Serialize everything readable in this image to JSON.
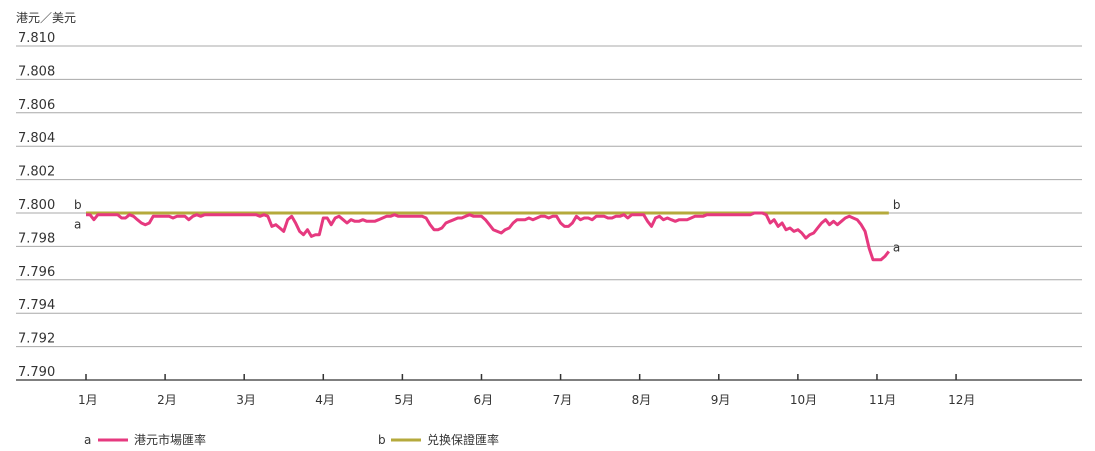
{
  "chart_data": {
    "type": "line",
    "y_unit_label": "港元／美元",
    "ylim": [
      7.79,
      7.81
    ],
    "y_ticks": [
      "7.810",
      "7.808",
      "7.806",
      "7.804",
      "7.802",
      "7.800",
      "7.798",
      "7.796",
      "7.794",
      "7.792",
      "7.790"
    ],
    "x_categories": [
      "1月",
      "2月",
      "3月",
      "4月",
      "5月",
      "6月",
      "7月",
      "8月",
      "9月",
      "10月",
      "11月",
      "12月"
    ],
    "xlim": [
      1,
      12.96
    ],
    "grid": true,
    "series": [
      {
        "key": "a",
        "name": "港元市場匯率",
        "color": "#e6397f",
        "points": [
          [
            1.0,
            7.7999
          ],
          [
            1.05,
            7.7999
          ],
          [
            1.1,
            7.7996
          ],
          [
            1.15,
            7.7999
          ],
          [
            1.2,
            7.7999
          ],
          [
            1.25,
            7.7999
          ],
          [
            1.3,
            7.7999
          ],
          [
            1.35,
            7.7999
          ],
          [
            1.4,
            7.7999
          ],
          [
            1.45,
            7.7997
          ],
          [
            1.5,
            7.7997
          ],
          [
            1.55,
            7.7999
          ],
          [
            1.6,
            7.7998
          ],
          [
            1.65,
            7.7996
          ],
          [
            1.7,
            7.7994
          ],
          [
            1.75,
            7.7993
          ],
          [
            1.8,
            7.7994
          ],
          [
            1.85,
            7.7998
          ],
          [
            1.9,
            7.7998
          ],
          [
            1.95,
            7.7998
          ],
          [
            2.0,
            7.7998
          ],
          [
            2.05,
            7.7998
          ],
          [
            2.1,
            7.7997
          ],
          [
            2.15,
            7.7998
          ],
          [
            2.2,
            7.7998
          ],
          [
            2.25,
            7.7998
          ],
          [
            2.3,
            7.7996
          ],
          [
            2.35,
            7.7998
          ],
          [
            2.4,
            7.7999
          ],
          [
            2.45,
            7.7998
          ],
          [
            2.5,
            7.7999
          ],
          [
            2.55,
            7.7999
          ],
          [
            2.6,
            7.7999
          ],
          [
            2.65,
            7.7999
          ],
          [
            2.7,
            7.7999
          ],
          [
            2.75,
            7.7999
          ],
          [
            2.8,
            7.7999
          ],
          [
            2.85,
            7.7999
          ],
          [
            2.9,
            7.7999
          ],
          [
            2.95,
            7.7999
          ],
          [
            3.0,
            7.7999
          ],
          [
            3.05,
            7.7999
          ],
          [
            3.1,
            7.7999
          ],
          [
            3.15,
            7.7999
          ],
          [
            3.2,
            7.7998
          ],
          [
            3.25,
            7.7999
          ],
          [
            3.3,
            7.7998
          ],
          [
            3.35,
            7.7992
          ],
          [
            3.4,
            7.7993
          ],
          [
            3.45,
            7.7991
          ],
          [
            3.5,
            7.7989
          ],
          [
            3.55,
            7.7996
          ],
          [
            3.6,
            7.7998
          ],
          [
            3.65,
            7.7994
          ],
          [
            3.7,
            7.7989
          ],
          [
            3.75,
            7.7987
          ],
          [
            3.8,
            7.799
          ],
          [
            3.85,
            7.7986
          ],
          [
            3.9,
            7.7987
          ],
          [
            3.95,
            7.7987
          ],
          [
            4.0,
            7.7997
          ],
          [
            4.05,
            7.7997
          ],
          [
            4.1,
            7.7993
          ],
          [
            4.15,
            7.7997
          ],
          [
            4.2,
            7.7998
          ],
          [
            4.25,
            7.7996
          ],
          [
            4.3,
            7.7994
          ],
          [
            4.35,
            7.7996
          ],
          [
            4.4,
            7.7995
          ],
          [
            4.45,
            7.7995
          ],
          [
            4.5,
            7.7996
          ],
          [
            4.55,
            7.7995
          ],
          [
            4.6,
            7.7995
          ],
          [
            4.65,
            7.7995
          ],
          [
            4.7,
            7.7996
          ],
          [
            4.75,
            7.7997
          ],
          [
            4.8,
            7.7998
          ],
          [
            4.85,
            7.7998
          ],
          [
            4.9,
            7.7999
          ],
          [
            4.95,
            7.7998
          ],
          [
            5.0,
            7.7998
          ],
          [
            5.05,
            7.7998
          ],
          [
            5.1,
            7.7998
          ],
          [
            5.15,
            7.7998
          ],
          [
            5.2,
            7.7998
          ],
          [
            5.25,
            7.7998
          ],
          [
            5.3,
            7.7997
          ],
          [
            5.35,
            7.7993
          ],
          [
            5.4,
            7.799
          ],
          [
            5.45,
            7.799
          ],
          [
            5.5,
            7.7991
          ],
          [
            5.55,
            7.7994
          ],
          [
            5.6,
            7.7995
          ],
          [
            5.65,
            7.7996
          ],
          [
            5.7,
            7.7997
          ],
          [
            5.75,
            7.7997
          ],
          [
            5.8,
            7.7998
          ],
          [
            5.85,
            7.7999
          ],
          [
            5.9,
            7.7998
          ],
          [
            5.95,
            7.7998
          ],
          [
            6.0,
            7.7998
          ],
          [
            6.05,
            7.7996
          ],
          [
            6.1,
            7.7993
          ],
          [
            6.15,
            7.799
          ],
          [
            6.2,
            7.7989
          ],
          [
            6.25,
            7.7988
          ],
          [
            6.3,
            7.799
          ],
          [
            6.35,
            7.7991
          ],
          [
            6.4,
            7.7994
          ],
          [
            6.45,
            7.7996
          ],
          [
            6.5,
            7.7996
          ],
          [
            6.55,
            7.7996
          ],
          [
            6.6,
            7.7997
          ],
          [
            6.65,
            7.7996
          ],
          [
            6.7,
            7.7997
          ],
          [
            6.75,
            7.7998
          ],
          [
            6.8,
            7.7998
          ],
          [
            6.85,
            7.7997
          ],
          [
            6.9,
            7.7998
          ],
          [
            6.95,
            7.7998
          ],
          [
            7.0,
            7.7994
          ],
          [
            7.05,
            7.7992
          ],
          [
            7.1,
            7.7992
          ],
          [
            7.15,
            7.7994
          ],
          [
            7.2,
            7.7998
          ],
          [
            7.25,
            7.7996
          ],
          [
            7.3,
            7.7997
          ],
          [
            7.35,
            7.7997
          ],
          [
            7.4,
            7.7996
          ],
          [
            7.45,
            7.7998
          ],
          [
            7.5,
            7.7998
          ],
          [
            7.55,
            7.7998
          ],
          [
            7.6,
            7.7997
          ],
          [
            7.65,
            7.7997
          ],
          [
            7.7,
            7.7998
          ],
          [
            7.75,
            7.7998
          ],
          [
            7.8,
            7.7999
          ],
          [
            7.85,
            7.7997
          ],
          [
            7.9,
            7.7999
          ],
          [
            7.95,
            7.7999
          ],
          [
            8.0,
            7.7999
          ],
          [
            8.05,
            7.7999
          ],
          [
            8.1,
            7.7995
          ],
          [
            8.15,
            7.7992
          ],
          [
            8.2,
            7.7997
          ],
          [
            8.25,
            7.7998
          ],
          [
            8.3,
            7.7996
          ],
          [
            8.35,
            7.7997
          ],
          [
            8.4,
            7.7996
          ],
          [
            8.45,
            7.7995
          ],
          [
            8.5,
            7.7996
          ],
          [
            8.55,
            7.7996
          ],
          [
            8.6,
            7.7996
          ],
          [
            8.65,
            7.7997
          ],
          [
            8.7,
            7.7998
          ],
          [
            8.75,
            7.7998
          ],
          [
            8.8,
            7.7998
          ],
          [
            8.85,
            7.7999
          ],
          [
            8.9,
            7.7999
          ],
          [
            8.95,
            7.7999
          ],
          [
            9.0,
            7.7999
          ],
          [
            9.05,
            7.7999
          ],
          [
            9.1,
            7.7999
          ],
          [
            9.15,
            7.7999
          ],
          [
            9.2,
            7.7999
          ],
          [
            9.25,
            7.7999
          ],
          [
            9.3,
            7.7999
          ],
          [
            9.35,
            7.7999
          ],
          [
            9.4,
            7.7999
          ],
          [
            9.45,
            7.8
          ],
          [
            9.5,
            7.8
          ],
          [
            9.55,
            7.8
          ],
          [
            9.6,
            7.7999
          ],
          [
            9.65,
            7.7994
          ],
          [
            9.7,
            7.7996
          ],
          [
            9.75,
            7.7992
          ],
          [
            9.8,
            7.7994
          ],
          [
            9.85,
            7.799
          ],
          [
            9.9,
            7.7991
          ],
          [
            9.95,
            7.7989
          ],
          [
            10.0,
            7.799
          ],
          [
            10.05,
            7.7988
          ],
          [
            10.1,
            7.7985
          ],
          [
            10.15,
            7.7987
          ],
          [
            10.2,
            7.7988
          ],
          [
            10.25,
            7.7991
          ],
          [
            10.3,
            7.7994
          ],
          [
            10.35,
            7.7996
          ],
          [
            10.4,
            7.7993
          ],
          [
            10.45,
            7.7995
          ],
          [
            10.5,
            7.7993
          ],
          [
            10.55,
            7.7995
          ],
          [
            10.6,
            7.7997
          ],
          [
            10.65,
            7.7998
          ],
          [
            10.7,
            7.7997
          ],
          [
            10.75,
            7.7996
          ],
          [
            10.8,
            7.7993
          ],
          [
            10.85,
            7.7989
          ],
          [
            10.9,
            7.7979
          ],
          [
            10.95,
            7.7972
          ],
          [
            11.0,
            7.7972
          ],
          [
            11.05,
            7.7972
          ],
          [
            11.1,
            7.7974
          ],
          [
            11.15,
            7.7977
          ]
        ]
      },
      {
        "key": "b",
        "name": "兑换保證匯率",
        "color": "#b5aa3c",
        "points": [
          [
            1.0,
            7.8
          ],
          [
            11.15,
            7.8
          ]
        ]
      }
    ],
    "legend": [
      {
        "key": "a",
        "label": "港元市場匯率",
        "color": "#e6397f"
      },
      {
        "key": "b",
        "label": "兑换保證匯率",
        "color": "#b5aa3c"
      }
    ],
    "legend_placement": "bottom-left"
  }
}
